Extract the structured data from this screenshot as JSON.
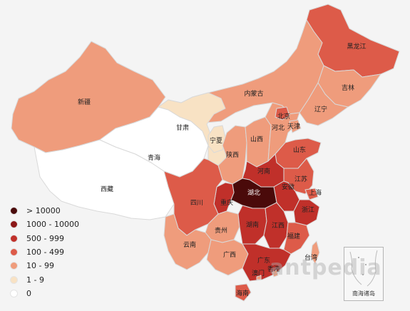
{
  "legend": {
    "items": [
      {
        "label": "> 10000",
        "color": "#4a0a0a"
      },
      {
        "label": "1000 - 10000",
        "color": "#8c1818"
      },
      {
        "label": "500 - 999",
        "color": "#c0302a"
      },
      {
        "label": "100 - 499",
        "color": "#dd5b49"
      },
      {
        "label": "10 - 99",
        "color": "#ef9c7c"
      },
      {
        "label": "1 - 9",
        "color": "#f8e2c4"
      },
      {
        "label": "0",
        "color": "#ffffff"
      }
    ]
  },
  "provinces": [
    {
      "id": "heilongjiang",
      "label": "黑龙江",
      "level": 4
    },
    {
      "id": "jilin",
      "label": "吉林",
      "level": 5
    },
    {
      "id": "liaoning",
      "label": "辽宁",
      "level": 5
    },
    {
      "id": "neimenggu",
      "label": "内蒙古",
      "level": 5
    },
    {
      "id": "xinjiang",
      "label": "新疆",
      "level": 5
    },
    {
      "id": "xizang",
      "label": "西藏",
      "level": 7
    },
    {
      "id": "qinghai",
      "label": "青海",
      "level": 7
    },
    {
      "id": "gansu",
      "label": "甘肃",
      "level": 6
    },
    {
      "id": "ningxia",
      "label": "宁夏",
      "level": 6
    },
    {
      "id": "shaanxi",
      "label": "陕西",
      "level": 5
    },
    {
      "id": "shanxi",
      "label": "山西",
      "level": 5
    },
    {
      "id": "hebei",
      "label": "河北",
      "level": 5
    },
    {
      "id": "beijing",
      "label": "北京",
      "level": 4
    },
    {
      "id": "tianjin",
      "label": "天津",
      "level": 5
    },
    {
      "id": "shandong",
      "label": "山东",
      "level": 4
    },
    {
      "id": "henan",
      "label": "河南",
      "level": 3
    },
    {
      "id": "jiangsu",
      "label": "江苏",
      "level": 4
    },
    {
      "id": "anhui",
      "label": "安徽",
      "level": 3
    },
    {
      "id": "shanghai",
      "label": "上海",
      "level": 4
    },
    {
      "id": "hubei",
      "label": "湖北",
      "level": 1
    },
    {
      "id": "chongqing",
      "label": "重庆",
      "level": 3
    },
    {
      "id": "sichuan",
      "label": "四川",
      "level": 4
    },
    {
      "id": "guizhou",
      "label": "贵州",
      "level": 5
    },
    {
      "id": "yunnan",
      "label": "云南",
      "level": 5
    },
    {
      "id": "hunan",
      "label": "湖南",
      "level": 3
    },
    {
      "id": "jiangxi",
      "label": "江西",
      "level": 3
    },
    {
      "id": "zhejiang",
      "label": "浙江",
      "level": 3
    },
    {
      "id": "fujian",
      "label": "福建",
      "level": 4
    },
    {
      "id": "guangxi",
      "label": "广西",
      "level": 5
    },
    {
      "id": "guangdong",
      "label": "广东",
      "level": 3
    },
    {
      "id": "taiwan",
      "label": "台湾",
      "level": 5
    },
    {
      "id": "hongkong",
      "label": "香港",
      "level": 5
    },
    {
      "id": "aomen",
      "label": "澳门",
      "level": 5
    },
    {
      "id": "hainan",
      "label": "海南",
      "level": 4
    }
  ],
  "inset": {
    "label": "南海诸岛"
  },
  "watermark": "antpedia"
}
